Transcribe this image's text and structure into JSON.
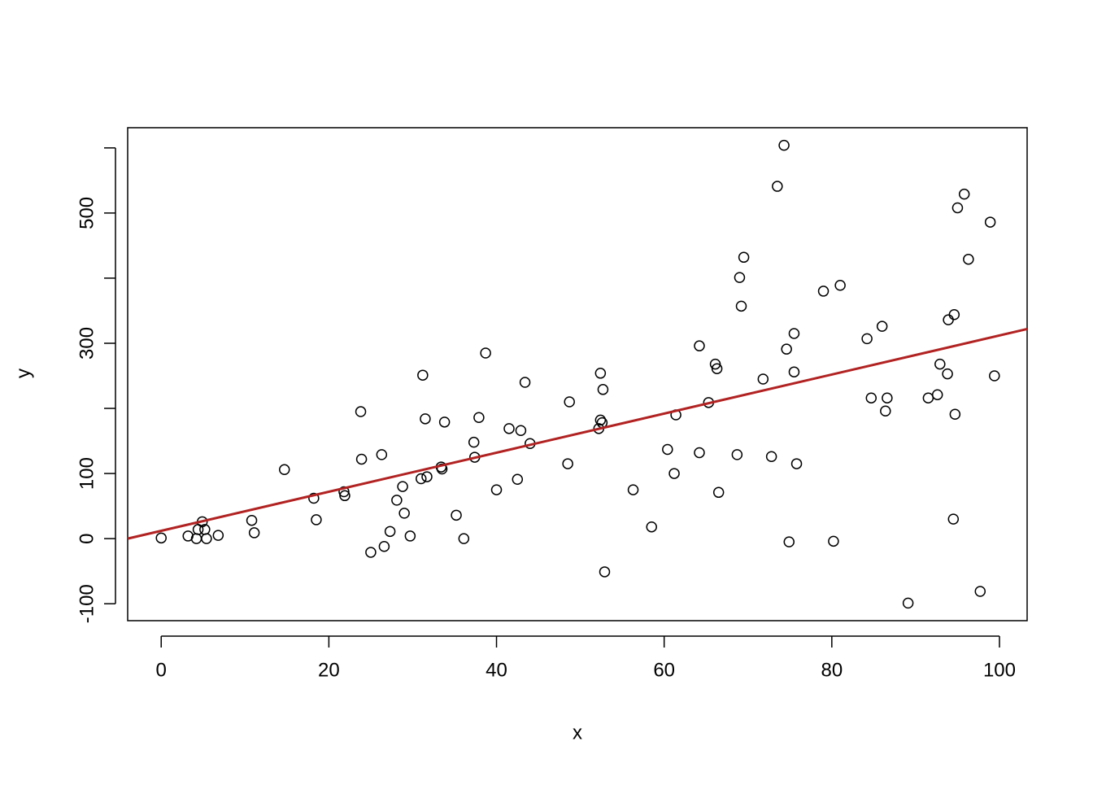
{
  "chart_data": {
    "type": "scatter",
    "x_label": "x",
    "y_label": "y",
    "xlim": [
      -4,
      103.3
    ],
    "ylim": [
      -126,
      631
    ],
    "xticks": [
      0,
      20,
      40,
      60,
      80,
      100
    ],
    "yticks": [
      -100,
      0,
      100,
      {
        "value": 200,
        "label": null
      },
      300,
      {
        "value": 400,
        "label": null
      },
      500,
      {
        "value": 600,
        "label": null
      }
    ],
    "point_color": "#000000",
    "x": [
      0,
      3.2,
      4.2,
      4.4,
      4.9,
      5.2,
      5.4,
      6.8,
      10.8,
      11.1,
      14.7,
      18.2,
      18.5,
      21.8,
      21.9,
      23.8,
      23.9,
      25.0,
      26.3,
      26.6,
      27.3,
      28.1,
      28.8,
      29.0,
      29.7,
      31.0,
      31.2,
      31.5,
      31.7,
      33.4,
      33.5,
      33.8,
      35.2,
      36.1,
      37.3,
      37.4,
      37.9,
      38.7,
      40.0,
      41.5,
      42.5,
      42.9,
      43.4,
      44.0,
      48.5,
      48.7,
      52.2,
      52.4,
      52.4,
      52.6,
      52.7,
      52.9,
      56.3,
      58.5,
      60.4,
      61.2,
      61.4,
      64.2,
      64.2,
      65.3,
      66.1,
      66.3,
      66.5,
      68.7,
      69.0,
      69.2,
      69.5,
      71.8,
      72.8,
      73.5,
      74.3,
      74.6,
      74.9,
      75.5,
      75.5,
      75.8,
      79.0,
      80.2,
      81.0,
      84.2,
      84.7,
      86.0,
      86.4,
      86.6,
      89.1,
      91.5,
      92.6,
      92.9,
      93.8,
      93.9,
      94.5,
      94.6,
      94.7,
      95.0,
      95.8,
      96.3,
      97.7,
      98.9,
      99.4
    ],
    "y": [
      1,
      4,
      0,
      14,
      26,
      14,
      0,
      5,
      28,
      9,
      106,
      62,
      29,
      72,
      66,
      195,
      122,
      -21,
      129,
      -12,
      11,
      59,
      80,
      39,
      4,
      92,
      251,
      184,
      95,
      110,
      107,
      179,
      36,
      0,
      148,
      125,
      186,
      285,
      75,
      169,
      91,
      166,
      240,
      146,
      115,
      210,
      169,
      254,
      182,
      178,
      229,
      -51,
      75,
      18,
      137,
      100,
      190,
      132,
      296,
      209,
      268,
      261,
      71,
      129,
      401,
      357,
      432,
      245,
      126,
      541,
      604,
      291,
      -5,
      315,
      256,
      115,
      380,
      -4,
      389,
      307,
      216,
      326,
      196,
      216,
      -99,
      216,
      221,
      268,
      253,
      336,
      30,
      344,
      191,
      508,
      529,
      429,
      -81,
      486,
      250
    ],
    "regression": {
      "intercept": 12,
      "slope": 3,
      "color": "#b22222"
    }
  }
}
